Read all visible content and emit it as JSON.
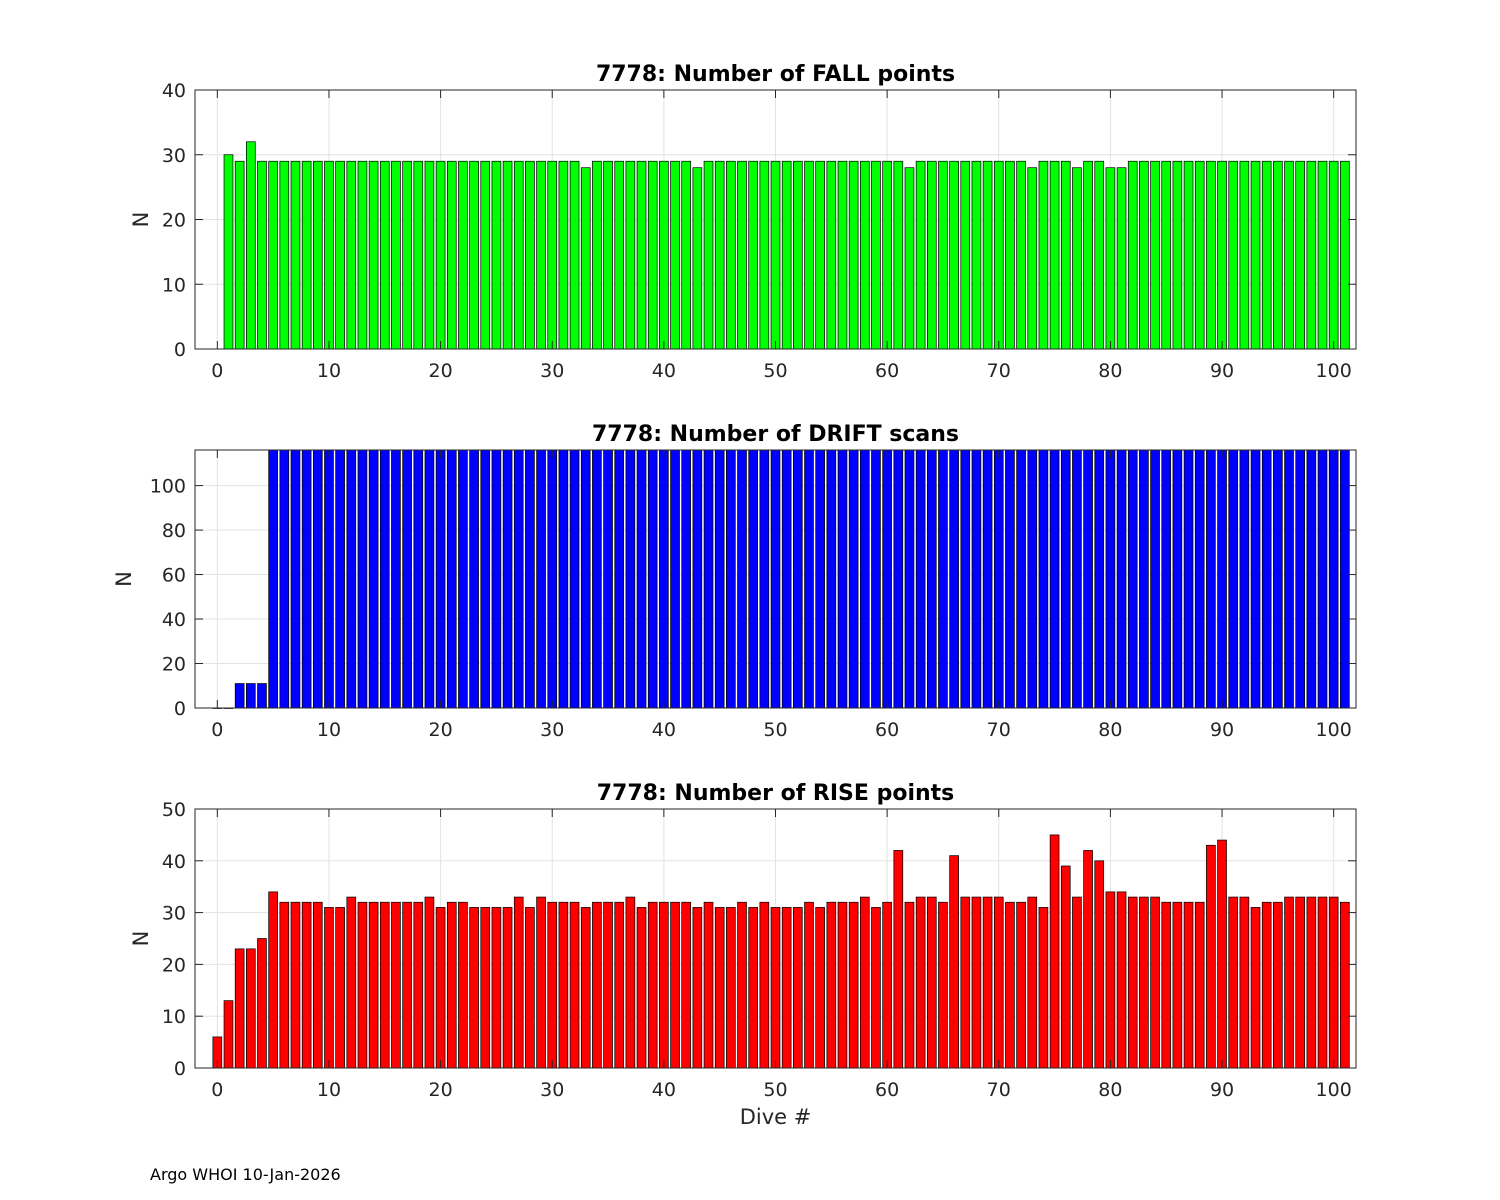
{
  "footer": "Argo WHOI 10-Jan-2026",
  "chart_data": [
    {
      "type": "bar",
      "title": "7778: Number of FALL points",
      "xlabel": "",
      "ylabel": "N",
      "color": "#00ff00",
      "xlim": [
        -2,
        102
      ],
      "ylim": [
        0,
        40
      ],
      "yticks": [
        0,
        10,
        20,
        30,
        40
      ],
      "xticks": [
        0,
        10,
        20,
        30,
        40,
        50,
        60,
        70,
        80,
        90,
        100
      ],
      "grid": true,
      "x": [
        1,
        2,
        3,
        4,
        5,
        6,
        7,
        8,
        9,
        10,
        11,
        12,
        13,
        14,
        15,
        16,
        17,
        18,
        19,
        20,
        21,
        22,
        23,
        24,
        25,
        26,
        27,
        28,
        29,
        30,
        31,
        32,
        33,
        34,
        35,
        36,
        37,
        38,
        39,
        40,
        41,
        42,
        43,
        44,
        45,
        46,
        47,
        48,
        49,
        50,
        51,
        52,
        53,
        54,
        55,
        56,
        57,
        58,
        59,
        60,
        61,
        62,
        63,
        64,
        65,
        66,
        67,
        68,
        69,
        70,
        71,
        72,
        73,
        74,
        75,
        76,
        77,
        78,
        79,
        80,
        81,
        82,
        83,
        84,
        85,
        86,
        87,
        88,
        89,
        90,
        91,
        92,
        93,
        94,
        95,
        96,
        97,
        98,
        99,
        100,
        101
      ],
      "values": [
        30,
        29,
        32,
        29,
        29,
        29,
        29,
        29,
        29,
        29,
        29,
        29,
        29,
        29,
        29,
        29,
        29,
        29,
        29,
        29,
        29,
        29,
        29,
        29,
        29,
        29,
        29,
        29,
        29,
        29,
        29,
        29,
        28,
        29,
        29,
        29,
        29,
        29,
        29,
        29,
        29,
        29,
        28,
        29,
        29,
        29,
        29,
        29,
        29,
        29,
        29,
        29,
        29,
        29,
        29,
        29,
        29,
        29,
        29,
        29,
        29,
        28,
        29,
        29,
        29,
        29,
        29,
        29,
        29,
        29,
        29,
        29,
        28,
        29,
        29,
        29,
        28,
        29,
        29,
        28,
        28,
        29,
        29,
        29,
        29,
        29,
        29,
        29,
        29,
        29,
        29,
        29,
        29,
        29,
        29,
        29,
        29,
        29,
        29,
        29,
        29
      ]
    },
    {
      "type": "bar",
      "title": "7778: Number of DRIFT scans",
      "xlabel": "",
      "ylabel": "N",
      "color": "#0000ff",
      "xlim": [
        -2,
        102
      ],
      "ylim": [
        0,
        116
      ],
      "yticks": [
        0,
        20,
        40,
        60,
        80,
        100
      ],
      "xticks": [
        0,
        10,
        20,
        30,
        40,
        50,
        60,
        70,
        80,
        90,
        100
      ],
      "grid": true,
      "x": [
        0,
        1,
        2,
        3,
        4,
        5,
        6,
        7,
        8,
        9,
        10,
        11,
        12,
        13,
        14,
        15,
        16,
        17,
        18,
        19,
        20,
        21,
        22,
        23,
        24,
        25,
        26,
        27,
        28,
        29,
        30,
        31,
        32,
        33,
        34,
        35,
        36,
        37,
        38,
        39,
        40,
        41,
        42,
        43,
        44,
        45,
        46,
        47,
        48,
        49,
        50,
        51,
        52,
        53,
        54,
        55,
        56,
        57,
        58,
        59,
        60,
        61,
        62,
        63,
        64,
        65,
        66,
        67,
        68,
        69,
        70,
        71,
        72,
        73,
        74,
        75,
        76,
        77,
        78,
        79,
        80,
        81,
        82,
        83,
        84,
        85,
        86,
        87,
        88,
        89,
        90,
        91,
        92,
        93,
        94,
        95,
        96,
        97,
        98,
        99,
        100,
        101
      ],
      "values": [
        0,
        0,
        11,
        11,
        11,
        116,
        116,
        116,
        116,
        116,
        116,
        116,
        116,
        116,
        116,
        116,
        116,
        116,
        116,
        116,
        116,
        116,
        116,
        116,
        116,
        116,
        116,
        116,
        116,
        116,
        116,
        116,
        116,
        116,
        116,
        116,
        116,
        116,
        116,
        116,
        116,
        116,
        116,
        116,
        116,
        116,
        116,
        116,
        116,
        116,
        116,
        116,
        116,
        116,
        116,
        116,
        116,
        116,
        116,
        116,
        116,
        116,
        116,
        116,
        116,
        116,
        116,
        116,
        116,
        116,
        116,
        116,
        116,
        116,
        116,
        116,
        116,
        116,
        116,
        116,
        116,
        116,
        116,
        116,
        116,
        116,
        116,
        116,
        116,
        116,
        116,
        116,
        116,
        116,
        116,
        116,
        116,
        116,
        116,
        116,
        116,
        116
      ]
    },
    {
      "type": "bar",
      "title": "7778: Number of RISE points",
      "xlabel": "Dive #",
      "ylabel": "N",
      "color": "#ff0000",
      "xlim": [
        -2,
        102
      ],
      "ylim": [
        0,
        50
      ],
      "yticks": [
        0,
        10,
        20,
        30,
        40,
        50
      ],
      "xticks": [
        0,
        10,
        20,
        30,
        40,
        50,
        60,
        70,
        80,
        90,
        100
      ],
      "grid": true,
      "x": [
        0,
        1,
        2,
        3,
        4,
        5,
        6,
        7,
        8,
        9,
        10,
        11,
        12,
        13,
        14,
        15,
        16,
        17,
        18,
        19,
        20,
        21,
        22,
        23,
        24,
        25,
        26,
        27,
        28,
        29,
        30,
        31,
        32,
        33,
        34,
        35,
        36,
        37,
        38,
        39,
        40,
        41,
        42,
        43,
        44,
        45,
        46,
        47,
        48,
        49,
        50,
        51,
        52,
        53,
        54,
        55,
        56,
        57,
        58,
        59,
        60,
        61,
        62,
        63,
        64,
        65,
        66,
        67,
        68,
        69,
        70,
        71,
        72,
        73,
        74,
        75,
        76,
        77,
        78,
        79,
        80,
        81,
        82,
        83,
        84,
        85,
        86,
        87,
        88,
        89,
        90,
        91,
        92,
        93,
        94,
        95,
        96,
        97,
        98,
        99,
        100,
        101
      ],
      "values": [
        6,
        13,
        23,
        23,
        25,
        34,
        32,
        32,
        32,
        32,
        31,
        31,
        33,
        32,
        32,
        32,
        32,
        32,
        32,
        33,
        31,
        32,
        32,
        31,
        31,
        31,
        31,
        33,
        31,
        33,
        32,
        32,
        32,
        31,
        32,
        32,
        32,
        33,
        31,
        32,
        32,
        32,
        32,
        31,
        32,
        31,
        31,
        32,
        31,
        32,
        31,
        31,
        31,
        32,
        31,
        32,
        32,
        32,
        33,
        31,
        32,
        42,
        32,
        33,
        33,
        32,
        41,
        33,
        33,
        33,
        33,
        32,
        32,
        33,
        31,
        45,
        39,
        33,
        42,
        40,
        34,
        34,
        33,
        33,
        33,
        32,
        32,
        32,
        32,
        43,
        44,
        33,
        33,
        31,
        32,
        32,
        33,
        33,
        33,
        33,
        33,
        32
      ]
    }
  ]
}
